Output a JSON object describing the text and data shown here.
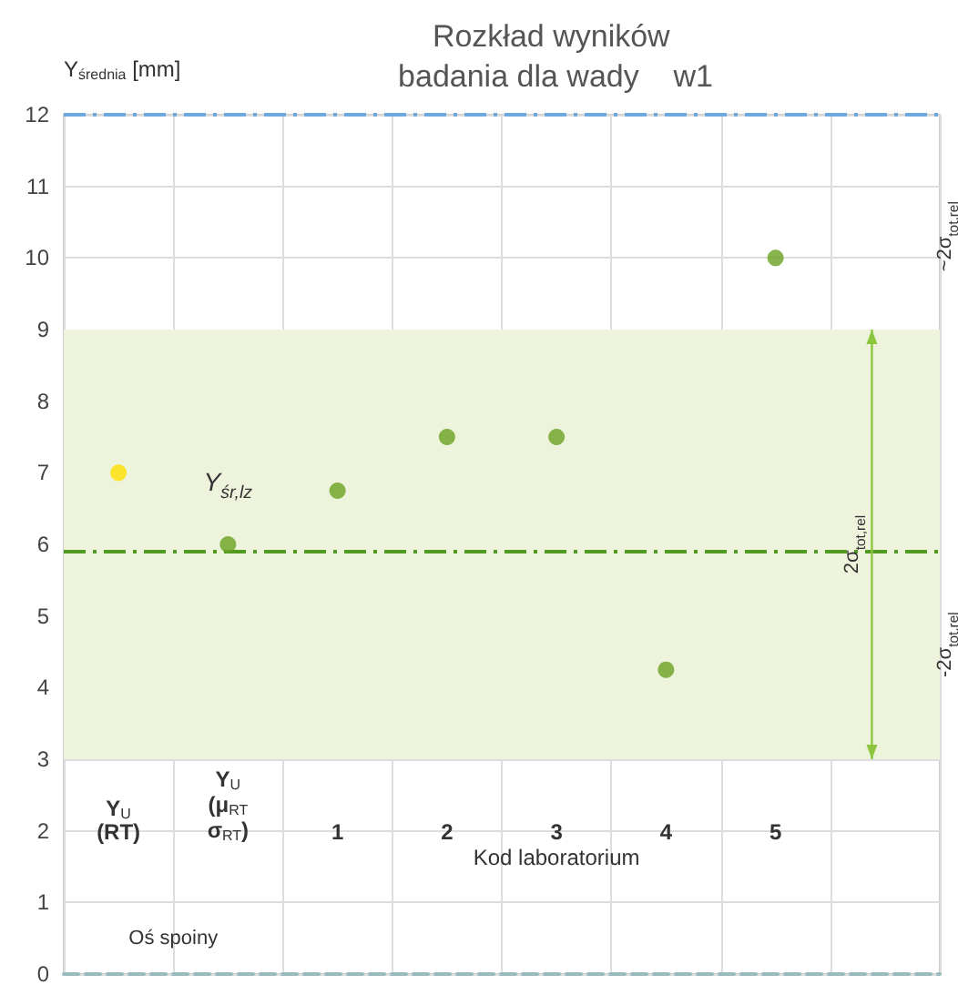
{
  "chart_data": {
    "type": "scatter",
    "title": "Rozkład wyników badania dla wady    w1",
    "ylabel": "Y$_{średnia}$ [mm]",
    "xlabel": "Kod laboratorium",
    "categories": [
      "Y$_{U}$ (RT)",
      "Y$_{U}$ (μ$_{RT}$ σ$_{RT}$)",
      "1",
      "2",
      "3",
      "4",
      "5",
      null
    ],
    "values": [
      7,
      6,
      6.75,
      7.5,
      7.5,
      4.25,
      10,
      null
    ],
    "colors": [
      "#ffe000",
      "#6aa121",
      "#6aa121",
      "#6aa121",
      "#6aa121",
      "#6aa121",
      "#6aa121",
      "#6aa121"
    ],
    "marker": "circle",
    "ylim": [
      0,
      12
    ],
    "yticks": [
      0,
      1,
      2,
      3,
      4,
      5,
      6,
      7,
      8,
      9,
      10,
      11,
      12
    ],
    "grid": true,
    "ref_lines": [
      {
        "axis": "y",
        "value": 5.9,
        "color": "#4f9a1f",
        "line_style": "dashed"
      },
      {
        "axis": "y",
        "value": 12,
        "color": "#6fa8dc",
        "line_style": "dashed"
      }
    ],
    "bands": [
      {
        "axis": "y",
        "from": 3,
        "to": 9,
        "color": "#eef3dc"
      }
    ],
    "annotations": [
      "Y$_{śr,lz}$",
      "2σ$_{tot,rel}$",
      "~2σ$_{tot,rel}$",
      "-2σ$_{tot,rel}$",
      "Oś spoiny"
    ]
  }
}
